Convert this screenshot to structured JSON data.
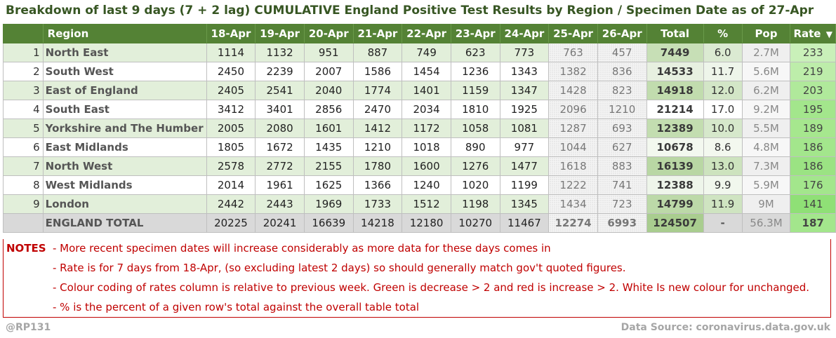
{
  "title": "Breakdown of last 9 days (7 + 2 lag) CUMULATIVE England Positive Test Results by Region / Specimen Date as of 27-Apr",
  "columns": {
    "region": "Region",
    "dates": [
      "18-Apr",
      "19-Apr",
      "20-Apr",
      "21-Apr",
      "22-Apr",
      "23-Apr",
      "24-Apr",
      "25-Apr",
      "26-Apr"
    ],
    "total": "Total",
    "pct": "%",
    "pop": "Pop",
    "rate": "Rate",
    "rate_sort_icon": "▼"
  },
  "rows": [
    {
      "idx": "1",
      "region": "North East",
      "values": [
        "1114",
        "1132",
        "951",
        "887",
        "749",
        "623",
        "773",
        "763",
        "457"
      ],
      "total": "7449",
      "pct": "6.0",
      "pop": "2.7M",
      "rate": "233",
      "rate_color": "#c9f0b9",
      "total_color": "#c7dfb6",
      "pct_color": "#dbead2"
    },
    {
      "idx": "2",
      "region": "South West",
      "values": [
        "2450",
        "2239",
        "2007",
        "1586",
        "1454",
        "1236",
        "1343",
        "1382",
        "836"
      ],
      "total": "14533",
      "pct": "11.7",
      "pop": "5.6M",
      "rate": "219",
      "rate_color": "#bdedaa",
      "total_color": "#e7f0e0",
      "pct_color": "#eef5ea"
    },
    {
      "idx": "3",
      "region": "East of England",
      "values": [
        "2405",
        "2541",
        "2040",
        "1774",
        "1401",
        "1159",
        "1347",
        "1428",
        "823"
      ],
      "total": "14918",
      "pct": "12.0",
      "pop": "6.2M",
      "rate": "203",
      "rate_color": "#b0e99b",
      "total_color": "#c1dcae",
      "pct_color": "#d3e6c7"
    },
    {
      "idx": "4",
      "region": "South East",
      "values": [
        "3412",
        "3401",
        "2856",
        "2470",
        "2034",
        "1810",
        "1925",
        "2096",
        "1210"
      ],
      "total": "21214",
      "pct": "17.0",
      "pop": "9.2M",
      "rate": "195",
      "rate_color": "#a3e68c",
      "total_color": "#ffffff",
      "pct_color": "#ffffff"
    },
    {
      "idx": "5",
      "region": "Yorkshire and The Humber",
      "values": [
        "2005",
        "2080",
        "1601",
        "1412",
        "1172",
        "1058",
        "1081",
        "1287",
        "693"
      ],
      "total": "12389",
      "pct": "10.0",
      "pop": "5.5M",
      "rate": "189",
      "rate_color": "#a6e78e",
      "total_color": "#c3ddb0",
      "pct_color": "#d6e8cb"
    },
    {
      "idx": "6",
      "region": "East Midlands",
      "values": [
        "1805",
        "1672",
        "1435",
        "1210",
        "1018",
        "890",
        "977",
        "1044",
        "627"
      ],
      "total": "10678",
      "pct": "8.6",
      "pop": "4.8M",
      "rate": "186",
      "rate_color": "#a3e68c",
      "total_color": "#f3f8ef",
      "pct_color": "#f3f8ef"
    },
    {
      "idx": "7",
      "region": "North West",
      "values": [
        "2578",
        "2772",
        "2155",
        "1780",
        "1600",
        "1276",
        "1477",
        "1618",
        "883"
      ],
      "total": "16139",
      "pct": "13.0",
      "pop": "7.3M",
      "rate": "186",
      "rate_color": "#9be383",
      "total_color": "#b9d7a4",
      "pct_color": "#cde3be"
    },
    {
      "idx": "8",
      "region": "West Midlands",
      "values": [
        "2014",
        "1961",
        "1625",
        "1366",
        "1240",
        "1020",
        "1199",
        "1222",
        "741"
      ],
      "total": "12388",
      "pct": "9.9",
      "pop": "5.9M",
      "rate": "176",
      "rate_color": "#a3e68c",
      "total_color": "#eef5ea",
      "pct_color": "#f1f7ed"
    },
    {
      "idx": "9",
      "region": "London",
      "values": [
        "2442",
        "2443",
        "1969",
        "1733",
        "1512",
        "1198",
        "1345",
        "1434",
        "723"
      ],
      "total": "14799",
      "pct": "11.9",
      "pop": "9M",
      "rate": "141",
      "rate_color": "#8fe076",
      "total_color": "#bcd9a8",
      "pct_color": "#cfe4c1"
    }
  ],
  "total_row": {
    "idx": "",
    "region": "ENGLAND TOTAL",
    "values": [
      "20225",
      "20241",
      "16639",
      "14218",
      "12180",
      "10270",
      "11467",
      "12274",
      "6993"
    ],
    "total": "124507",
    "pct": "-",
    "pop": "56.3M",
    "rate": "187",
    "rate_color": "#a3e68c",
    "total_color": "#a9cd8f"
  },
  "notes": {
    "label": "NOTES",
    "lines": [
      "- More recent specimen dates will increase considerably as more data for these days comes in",
      "- Rate is for 7 days from 18-Apr, (so excluding latest 2 days) so should generally match gov't quoted figures.",
      "- Colour coding of rates column is relative to previous week. Green is decrease > 2 and red is increase > 2. White Is new colour for unchanged.",
      "- % is the percent of a given row's total against the overall table total"
    ]
  },
  "footer": {
    "handle": "@RP131",
    "source": "Data Source: coronavirus.data.gov.uk"
  }
}
